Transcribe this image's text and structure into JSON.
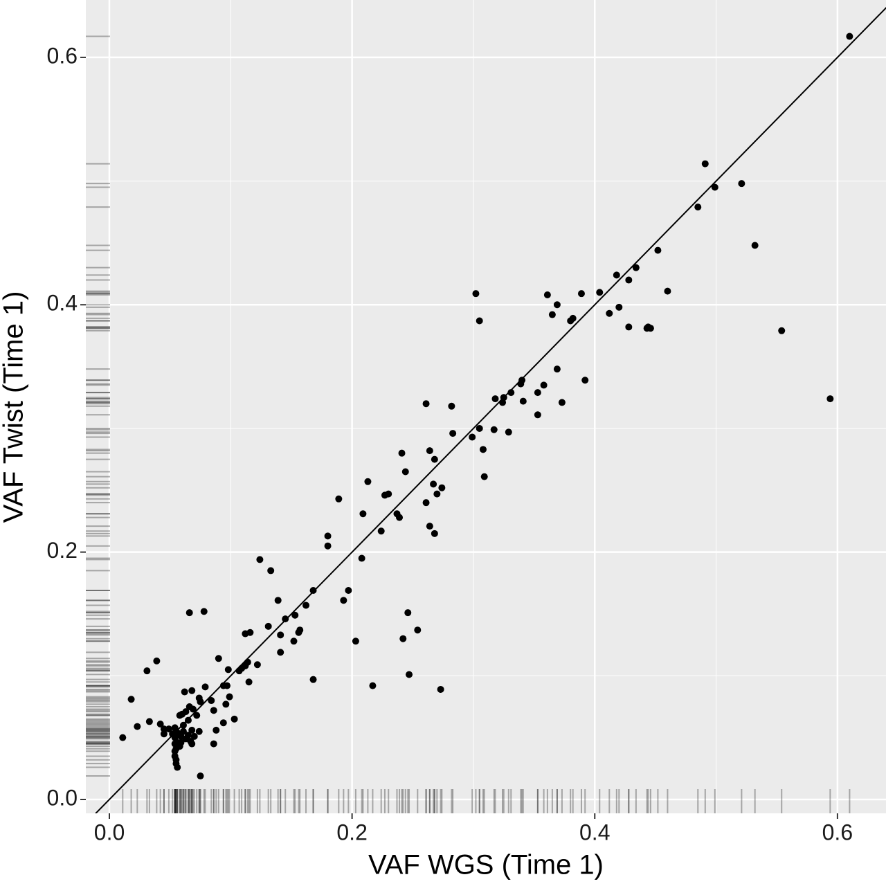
{
  "chart_data": {
    "type": "scatter",
    "x_label": "VAF WGS (Time 1)",
    "y_label": "VAF Twist (Time 1)",
    "xlim": [
      -0.0194,
      0.64
    ],
    "ylim": [
      -0.0112,
      0.6464
    ],
    "xticks": [
      {
        "value": 0,
        "label": "0.0"
      },
      0.2,
      0.4,
      0.6
    ],
    "yticks": [
      {
        "value": 0,
        "label": "0.0"
      },
      0.2,
      0.4,
      0.6
    ],
    "xminor": [
      0.1,
      0.3,
      0.5
    ],
    "yminor": [
      0.1,
      0.3,
      0.5
    ],
    "grid": true,
    "rug": true,
    "diagonal": true,
    "color": "#000000",
    "x": [
      0.61,
      0.491,
      0.499,
      0.521,
      0.485,
      0.532,
      0.452,
      0.434,
      0.418,
      0.428,
      0.46,
      0.404,
      0.389,
      0.361,
      0.369,
      0.42,
      0.412,
      0.365,
      0.382,
      0.38,
      0.428,
      0.444,
      0.446,
      0.443,
      0.554,
      0.302,
      0.305,
      0.369,
      0.392,
      0.34,
      0.339,
      0.358,
      0.331,
      0.353,
      0.325,
      0.318,
      0.324,
      0.341,
      0.373,
      0.594,
      0.261,
      0.282,
      0.353,
      0.305,
      0.317,
      0.329,
      0.283,
      0.299,
      0.308,
      0.264,
      0.241,
      0.268,
      0.244,
      0.309,
      0.213,
      0.267,
      0.274,
      0.27,
      0.23,
      0.227,
      0.189,
      0.261,
      0.237,
      0.209,
      0.239,
      0.264,
      0.224,
      0.268,
      0.18,
      0.18,
      0.208,
      0.124,
      0.133,
      0.197,
      0.168,
      0.139,
      0.193,
      0.162,
      0.066,
      0.078,
      0.246,
      0.153,
      0.145,
      0.131,
      0.254,
      0.157,
      0.156,
      0.116,
      0.112,
      0.141,
      0.242,
      0.152,
      0.203,
      0.141,
      0.09,
      0.039,
      0.114,
      0.112,
      0.122,
      0.109,
      0.031,
      0.098,
      0.107,
      0.247,
      0.168,
      0.115,
      0.217,
      0.094,
      0.097,
      0.273,
      0.079,
      0.068,
      0.062,
      0.099,
      0.018,
      0.074,
      0.075,
      0.084,
      0.096,
      0.066,
      0.069,
      0.086,
      0.063,
      0.06,
      0.072,
      0.058,
      0.103,
      0.033,
      0.065,
      0.094,
      0.042,
      0.023,
      0.061,
      0.054,
      0.045,
      0.049,
      0.088,
      0.074,
      0.068,
      0.061,
      0.056,
      0.045,
      0.052,
      0.065,
      0.07,
      0.059,
      0.011,
      0.054,
      0.063,
      0.067,
      0.056,
      0.059,
      0.086,
      0.054,
      0.068,
      0.058,
      0.055,
      0.054,
      0.054,
      0.055,
      0.055,
      0.056,
      0.075
    ],
    "values": [
      0.617,
      0.514,
      0.495,
      0.498,
      0.479,
      0.448,
      0.444,
      0.43,
      0.424,
      0.42,
      0.411,
      0.41,
      0.409,
      0.408,
      0.4,
      0.398,
      0.393,
      0.392,
      0.389,
      0.387,
      0.382,
      0.382,
      0.381,
      0.381,
      0.379,
      0.409,
      0.387,
      0.348,
      0.339,
      0.339,
      0.336,
      0.335,
      0.329,
      0.329,
      0.325,
      0.324,
      0.321,
      0.322,
      0.321,
      0.324,
      0.32,
      0.318,
      0.311,
      0.3,
      0.299,
      0.297,
      0.296,
      0.293,
      0.283,
      0.282,
      0.28,
      0.275,
      0.265,
      0.261,
      0.257,
      0.255,
      0.252,
      0.247,
      0.247,
      0.246,
      0.243,
      0.24,
      0.231,
      0.231,
      0.228,
      0.221,
      0.217,
      0.215,
      0.213,
      0.205,
      0.195,
      0.194,
      0.185,
      0.169,
      0.169,
      0.161,
      0.161,
      0.157,
      0.151,
      0.152,
      0.151,
      0.149,
      0.146,
      0.14,
      0.137,
      0.137,
      0.135,
      0.135,
      0.134,
      0.133,
      0.13,
      0.128,
      0.128,
      0.119,
      0.114,
      0.112,
      0.111,
      0.108,
      0.109,
      0.106,
      0.104,
      0.105,
      0.104,
      0.101,
      0.097,
      0.095,
      0.092,
      0.092,
      0.092,
      0.089,
      0.091,
      0.088,
      0.087,
      0.083,
      0.081,
      0.082,
      0.079,
      0.08,
      0.077,
      0.075,
      0.073,
      0.072,
      0.071,
      0.069,
      0.068,
      0.068,
      0.065,
      0.063,
      0.064,
      0.062,
      0.061,
      0.059,
      0.06,
      0.058,
      0.057,
      0.057,
      0.056,
      0.055,
      0.056,
      0.055,
      0.054,
      0.053,
      0.053,
      0.052,
      0.051,
      0.051,
      0.05,
      0.05,
      0.049,
      0.047,
      0.046,
      0.046,
      0.045,
      0.045,
      0.045,
      0.043,
      0.041,
      0.039,
      0.035,
      0.032,
      0.029,
      0.026,
      0.019
    ]
  }
}
